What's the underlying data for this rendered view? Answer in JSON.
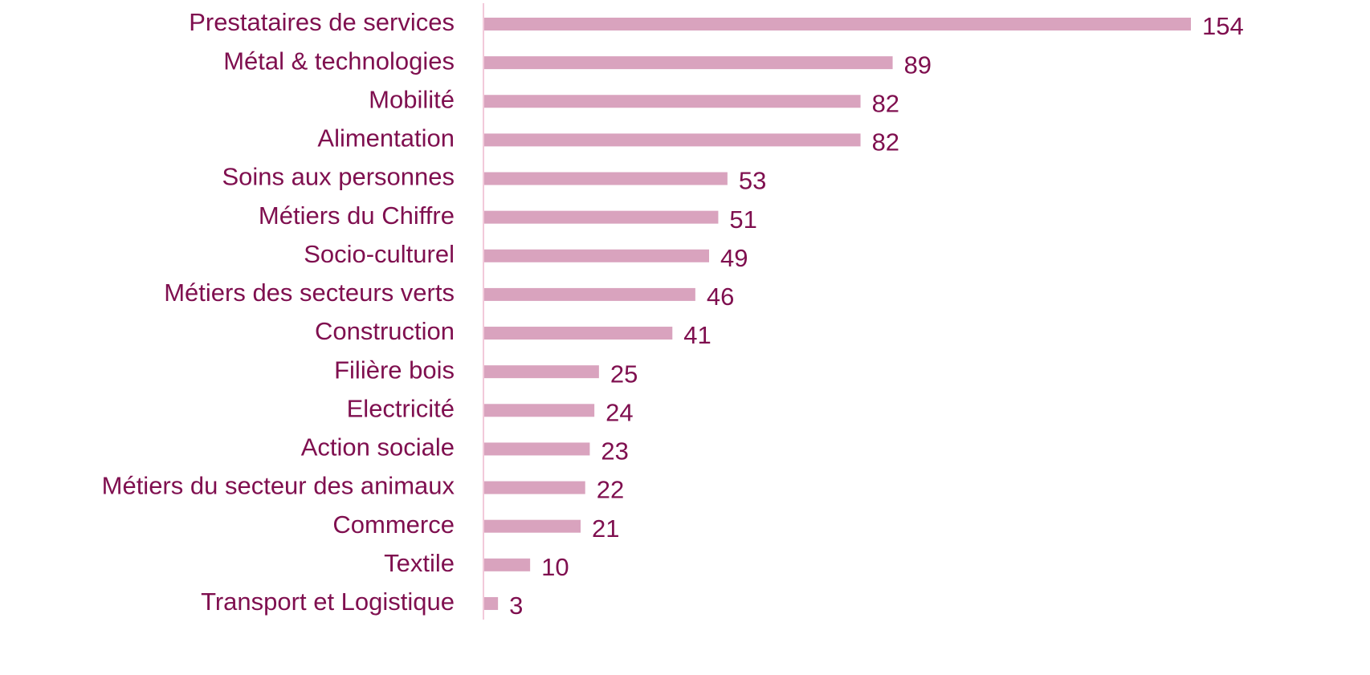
{
  "chart_data": {
    "type": "bar",
    "orientation": "horizontal",
    "categories": [
      "Prestataires de services",
      "Métal & technologies",
      "Mobilité",
      "Alimentation",
      "Soins aux personnes",
      "Métiers du Chiffre",
      "Socio-culturel",
      "Métiers des secteurs verts",
      "Construction",
      "Filière bois",
      "Electricité",
      "Action sociale",
      "Métiers du secteur des animaux",
      "Commerce",
      "Textile",
      "Transport et Logistique"
    ],
    "values": [
      154,
      89,
      82,
      82,
      53,
      51,
      49,
      46,
      41,
      25,
      24,
      23,
      22,
      21,
      10,
      3
    ],
    "color": "#d9a3be",
    "xlim": [
      0,
      154
    ]
  }
}
